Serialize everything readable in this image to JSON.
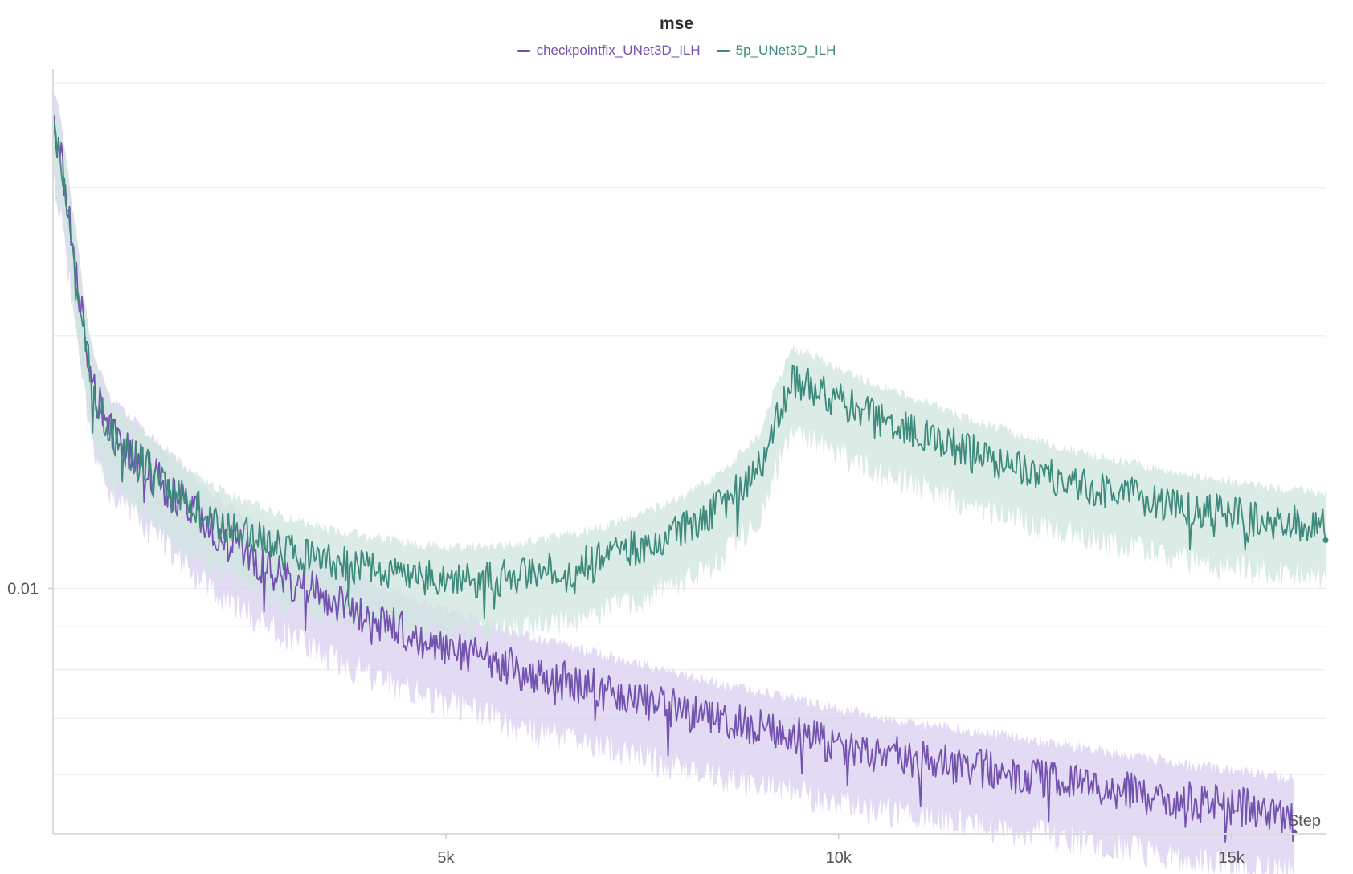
{
  "chart_data": {
    "type": "line",
    "title": "mse",
    "xlabel": "Step",
    "ylabel": "",
    "x_scale": "linear",
    "y_scale": "log",
    "xlim": [
      0,
      16200
    ],
    "ylim": [
      0.0051,
      0.041
    ],
    "x_ticks": [
      {
        "value": 5000,
        "label": "5k"
      },
      {
        "value": 10000,
        "label": "10k"
      },
      {
        "value": 15000,
        "label": "15k"
      }
    ],
    "y_ticks": [
      {
        "value": 0.01,
        "label": "0.01"
      }
    ],
    "grid": true,
    "legend_position": "top-center",
    "series": [
      {
        "name": "checkpointfix_UNet3D_ILH",
        "color": "#7352b0",
        "band_color": "#d9cdef",
        "noise": 0.055,
        "x": [
          0,
          100,
          200,
          300,
          400,
          500,
          700,
          1000,
          1500,
          2000,
          2500,
          3000,
          3500,
          4000,
          4500,
          5000,
          5500,
          6000,
          6500,
          7000,
          7500,
          8000,
          8500,
          9000,
          9500,
          10000,
          10500,
          11000,
          11500,
          12000,
          12500,
          13000,
          13500,
          14000,
          14500,
          15000,
          15500,
          15800
        ],
        "y": [
          0.036,
          0.033,
          0.028,
          0.024,
          0.02,
          0.0175,
          0.0155,
          0.0145,
          0.0131,
          0.0118,
          0.011,
          0.0103,
          0.0098,
          0.0093,
          0.0089,
          0.0086,
          0.0083,
          0.008,
          0.0078,
          0.0076,
          0.0074,
          0.0072,
          0.007,
          0.00685,
          0.0067,
          0.00655,
          0.0064,
          0.0063,
          0.0062,
          0.0061,
          0.006,
          0.0059,
          0.0058,
          0.0057,
          0.0056,
          0.00555,
          0.00545,
          0.0054
        ]
      },
      {
        "name": "5p_UNet3D_ILH",
        "color": "#3e8b7c",
        "band_color": "#cfe6df",
        "noise": 0.05,
        "x": [
          0,
          100,
          200,
          300,
          400,
          500,
          700,
          1000,
          1500,
          2000,
          2500,
          3000,
          3500,
          4000,
          4500,
          5000,
          5500,
          6000,
          6500,
          7000,
          7500,
          8000,
          8500,
          9000,
          9200,
          9400,
          9600,
          10000,
          10500,
          11000,
          11500,
          12000,
          12500,
          13000,
          13500,
          14000,
          14500,
          15000,
          15500,
          16200
        ],
        "y": [
          0.036,
          0.033,
          0.028,
          0.024,
          0.02,
          0.0175,
          0.0155,
          0.0145,
          0.0133,
          0.0122,
          0.0116,
          0.0111,
          0.0108,
          0.0106,
          0.0104,
          0.0103,
          0.0103,
          0.0104,
          0.0106,
          0.0109,
          0.0113,
          0.0118,
          0.0126,
          0.014,
          0.016,
          0.0178,
          0.0175,
          0.0168,
          0.016,
          0.0154,
          0.0148,
          0.0143,
          0.0138,
          0.0134,
          0.0131,
          0.0128,
          0.0125,
          0.0123,
          0.0121,
          0.0119
        ]
      }
    ]
  }
}
